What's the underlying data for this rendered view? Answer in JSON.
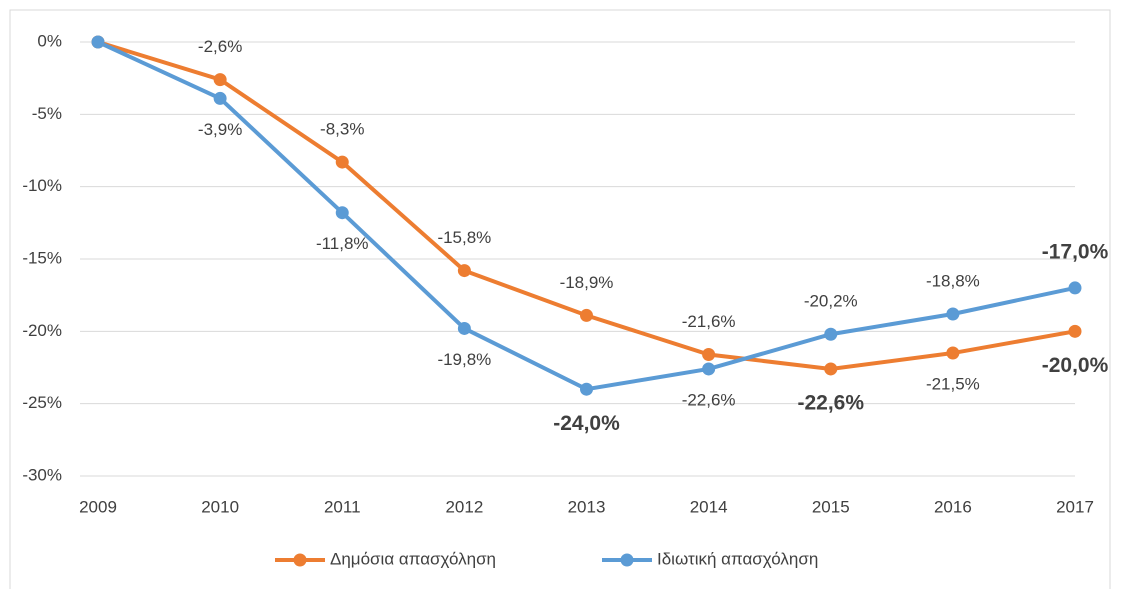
{
  "chart_data": {
    "type": "line",
    "x": [
      2009,
      2010,
      2011,
      2012,
      2013,
      2014,
      2015,
      2016,
      2017
    ],
    "series": [
      {
        "name": "Δημόσια απασχόληση",
        "color": "#ed7d31",
        "values": [
          0,
          -2.6,
          -8.3,
          -15.8,
          -18.9,
          -21.6,
          -22.6,
          -21.5,
          -20.0
        ],
        "value_labels": [
          null,
          "-2,6%",
          "-8,3%",
          "-15,8%",
          "-18,9%",
          "-21,6%",
          "-22,6%",
          "-21,5%",
          "-20,0%"
        ]
      },
      {
        "name": "Ιδιωτική απασχόληση",
        "color": "#5b9bd5",
        "values": [
          0,
          -3.9,
          -11.8,
          -19.8,
          -24.0,
          -22.6,
          -20.2,
          -18.8,
          -17.0
        ],
        "value_labels": [
          null,
          "-3,9%",
          "-11,8%",
          "-19,8%",
          "-24,0%",
          "-22,6%",
          "-20,2%",
          "-18,8%",
          "-17,0%"
        ]
      }
    ],
    "ylim": [
      -30,
      0
    ],
    "yticks": [
      {
        "value": 0,
        "label": "0%"
      },
      {
        "value": -5,
        "label": "-5%"
      },
      {
        "value": -10,
        "label": "-10%"
      },
      {
        "value": -15,
        "label": "-15%"
      },
      {
        "value": -20,
        "label": "-20%"
      },
      {
        "value": -25,
        "label": "-25%"
      },
      {
        "value": -30,
        "label": "-30%"
      }
    ],
    "grid": true,
    "legend": "bottom"
  }
}
